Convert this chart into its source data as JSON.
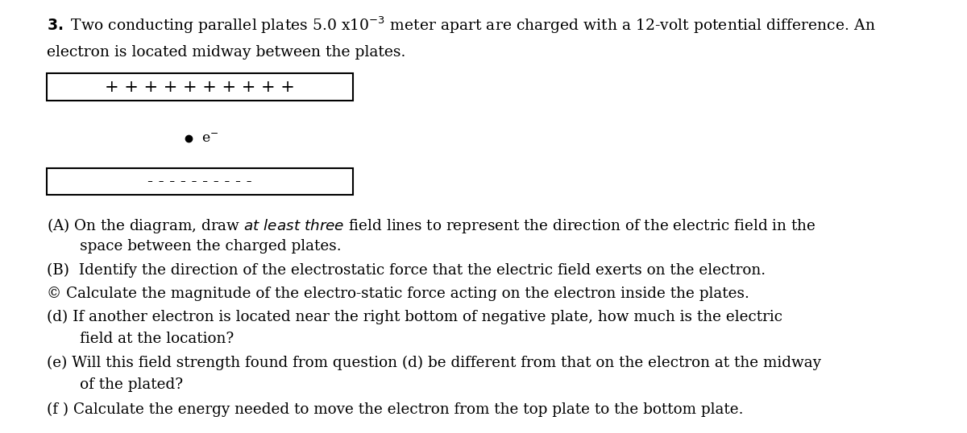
{
  "background_color": "#ffffff",
  "fig_width": 12.0,
  "fig_height": 5.38,
  "font_size_title": 13.5,
  "font_size_questions": 13.2,
  "font_size_plate": 15,
  "font_size_electron": 12.5,
  "plate_box_color": "#000000",
  "plate_text_color": "#000000",
  "electron_dot_color": "#000000",
  "plate_plus_text": "+ + + + + + + + + +",
  "plate_minus_text": "- - - - - - - - - -",
  "q_lines": [
    "(A) On the diagram, draw ITALIC field lines to represent the direction of the electric field in the",
    "       space between the charged plates.",
    "(B)  Identify the direction of the electrostatic force that the electric field exerts on the electron.",
    "© Calculate the magnitude of the electro-static force acting on the electron inside the plates.",
    "(d) If another electron is located near the right bottom of negative plate, how much is the electric",
    "       field at the location?",
    "(e) Will this field strength found from question (d) be different from that on the electron at the midway",
    "       of the plated?",
    "(f ) Calculate the energy needed to move the electron from the top plate to the bottom plate."
  ]
}
